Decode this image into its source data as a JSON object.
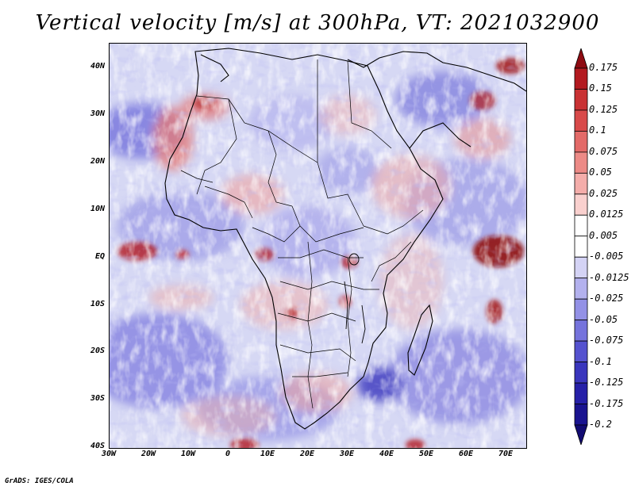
{
  "title": "Vertical velocity [m/s] at 300hPa, VT: 2021032900",
  "footer": "GrADS: IGES/COLA",
  "lat_labels": [
    "40N",
    "30N",
    "20N",
    "10N",
    "EQ",
    "10S",
    "20S",
    "30S",
    "40S"
  ],
  "lon_labels": [
    "30W",
    "20W",
    "10W",
    "0",
    "10E",
    "20E",
    "30E",
    "40E",
    "50E",
    "60E",
    "70E"
  ],
  "colorbar": {
    "labels": [
      "0.175",
      "0.15",
      "0.125",
      "0.1",
      "0.075",
      "0.05",
      "0.025",
      "0.0125",
      "0.005",
      "-0.005",
      "-0.0125",
      "-0.025",
      "-0.05",
      "-0.075",
      "-0.1",
      "-0.125",
      "-0.175",
      "-0.2"
    ],
    "colors": [
      "#8e0b12",
      "#b31a20",
      "#c93234",
      "#d84a4a",
      "#e36a68",
      "#ec8a86",
      "#f4adaa",
      "#f9d0ce",
      "#ffffff",
      "#ffffff",
      "#d4d3f5",
      "#b3b1ee",
      "#9391e6",
      "#7573dc",
      "#5552cf",
      "#3a36bd",
      "#2620a8",
      "#1a1490",
      "#120b72"
    ]
  }
}
